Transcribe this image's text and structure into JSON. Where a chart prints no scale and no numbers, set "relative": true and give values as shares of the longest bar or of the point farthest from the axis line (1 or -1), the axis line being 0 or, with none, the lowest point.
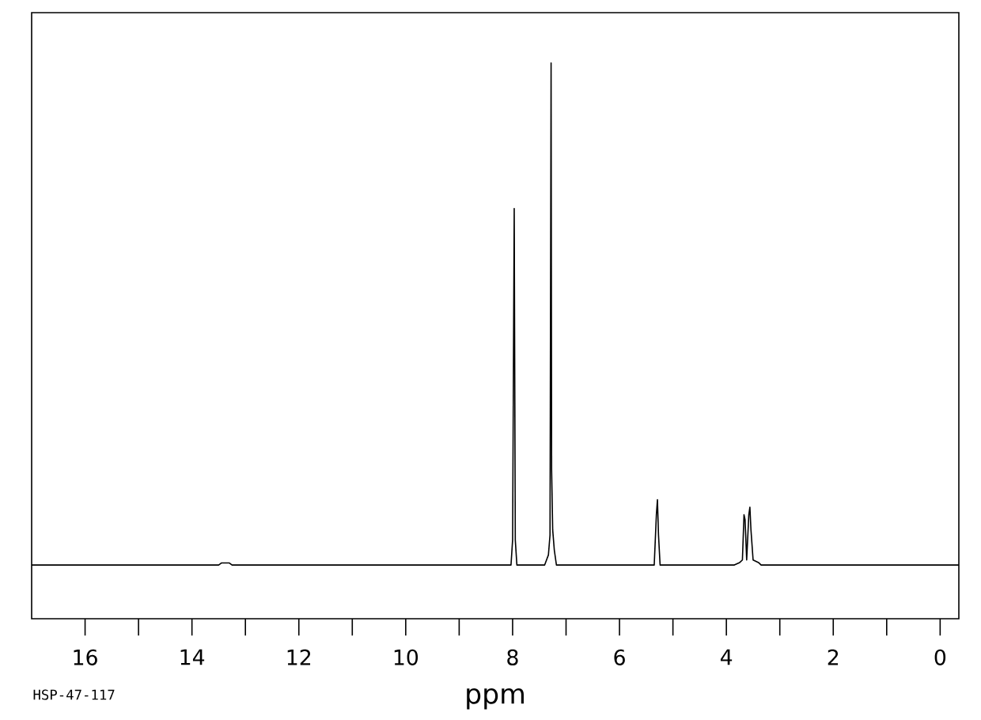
{
  "chart_data": {
    "type": "line",
    "relative": true,
    "xlabel": "ppm",
    "color": "#000000",
    "annotations": [
      "HSP-47-117"
    ],
    "xlim": [
      17,
      -0.35
    ],
    "xticks": [
      16,
      14,
      12,
      10,
      8,
      6,
      4,
      2,
      0
    ],
    "x": [
      17,
      13.5,
      13.45,
      13.3,
      13.25,
      8.2,
      8.03,
      8.0,
      7.97,
      7.95,
      7.92,
      7.4,
      7.33,
      7.3,
      7.28,
      7.27,
      7.25,
      7.22,
      7.18,
      5.35,
      5.31,
      5.29,
      5.27,
      5.24,
      3.85,
      3.75,
      3.7,
      3.67,
      3.65,
      3.62,
      3.58,
      3.56,
      3.54,
      3.5,
      3.4,
      3.35,
      -0.35
    ],
    "values": [
      0,
      0,
      0.004,
      0.004,
      0,
      0,
      0,
      0.05,
      0.71,
      0.05,
      0,
      0,
      0.02,
      0.06,
      1.0,
      0.19,
      0.07,
      0.03,
      0,
      0,
      0.1,
      0.13,
      0.06,
      0,
      0,
      0.005,
      0.01,
      0.1,
      0.09,
      0.01,
      0.1,
      0.115,
      0.07,
      0.01,
      0.005,
      0,
      0
    ]
  }
}
